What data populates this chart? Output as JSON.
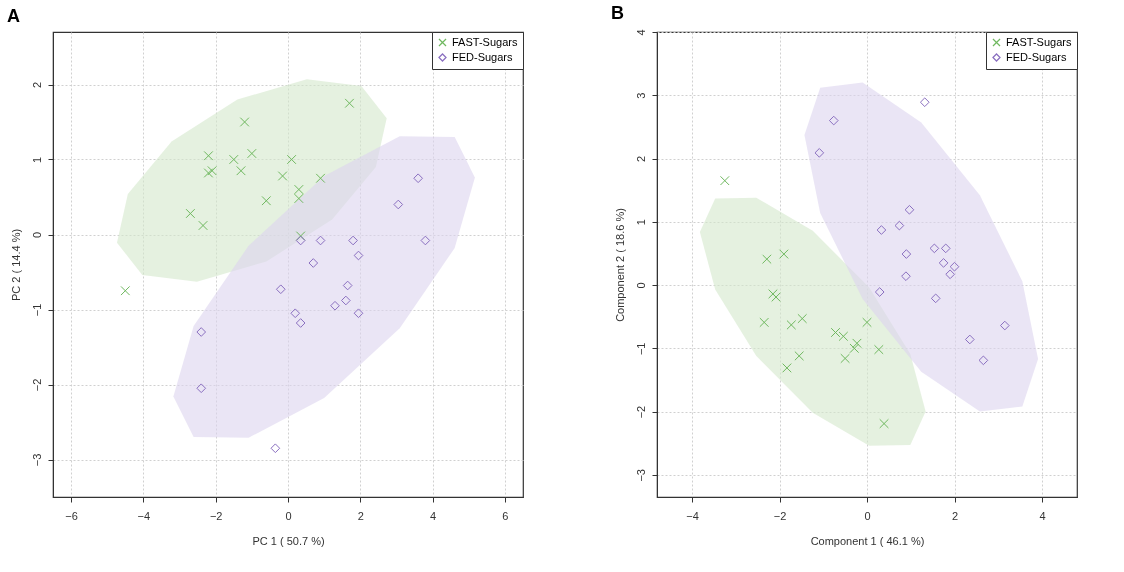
{
  "chart_data": [
    {
      "type": "scatter",
      "title": "A",
      "xlabel": "PC 1 ( 50.7 %)",
      "ylabel": "PC 2 ( 14.4 %)",
      "xlim": [
        -6.5,
        6.5
      ],
      "ylim": [
        -3.5,
        2.7
      ],
      "xticks": [
        -6,
        -4,
        -2,
        0,
        2,
        4,
        6
      ],
      "yticks": [
        -3,
        -2,
        -1,
        0,
        1,
        2
      ],
      "grid": true,
      "legend": "top right",
      "series": [
        {
          "type": "area",
          "color": "#d4e8cc",
          "x": [
            2.73,
            2.03,
            0.52,
            -1.4,
            -3.22,
            -4.43,
            -4.73,
            -4.03,
            -2.52,
            -0.6,
            1.22,
            2.43
          ],
          "values": [
            1.55,
            1.98,
            2.07,
            1.8,
            1.24,
            0.54,
            -0.11,
            -0.54,
            -0.63,
            -0.36,
            0.2,
            0.9
          ]
        },
        {
          "type": "area",
          "color": "#dcd3ee",
          "x": [
            5.17,
            4.61,
            3.09,
            1.0,
            -1.09,
            -2.61,
            -3.17,
            -2.61,
            -1.09,
            1.0,
            3.09,
            4.61
          ],
          "values": [
            0.76,
            1.3,
            1.31,
            0.78,
            -0.15,
            -1.22,
            -2.16,
            -2.7,
            -2.71,
            -2.18,
            -1.25,
            -0.18
          ]
        },
        {
          "name": "FAST-Sugars",
          "marker": "cross",
          "color": "#6fb85f",
          "x": [
            -4.5,
            -2.7,
            -2.35,
            -2.2,
            -2.1,
            -2.2,
            -1.2,
            -1.5,
            -1.0,
            -1.3,
            -0.6,
            -0.15,
            0.1,
            0.3,
            0.3,
            0.35,
            0.9,
            1.7
          ],
          "values": [
            -0.75,
            0.28,
            0.12,
            0.82,
            0.85,
            1.05,
            1.5,
            1.0,
            1.08,
            0.85,
            0.45,
            0.78,
            1.0,
            0.6,
            0.48,
            -0.02,
            0.75,
            1.75
          ]
        },
        {
          "name": "FED-Sugars",
          "marker": "diamond",
          "color": "#8a6fc0",
          "x": [
            3.6,
            3.05,
            3.8,
            0.35,
            0.9,
            1.8,
            1.95,
            0.7,
            1.65,
            1.6,
            1.3,
            -0.2,
            0.2,
            0.35,
            1.95,
            -2.4,
            -2.4,
            -0.35
          ],
          "values": [
            0.75,
            0.4,
            -0.08,
            -0.08,
            -0.08,
            -0.08,
            -0.28,
            -0.38,
            -0.68,
            -0.88,
            -0.95,
            -0.73,
            -1.05,
            -1.18,
            -1.05,
            -1.3,
            -2.05,
            -2.85
          ]
        }
      ]
    },
    {
      "type": "scatter",
      "title": "B",
      "xlabel": "Component 1 ( 46.1 %)",
      "ylabel": "Component 2 ( 18.6 %)",
      "xlim": [
        -4.8,
        4.8
      ],
      "ylim": [
        -3.35,
        4
      ],
      "xticks": [
        -4,
        -2,
        0,
        2,
        4
      ],
      "yticks": [
        -3,
        -2,
        -1,
        0,
        1,
        2,
        3,
        4
      ],
      "grid": true,
      "legend": "top right",
      "series": [
        {
          "type": "area",
          "color": "#d4e8cc",
          "x": [
            1.34,
            0.99,
            0.05,
            -1.24,
            -2.53,
            -3.47,
            -3.82,
            -3.47,
            -2.53,
            -1.24,
            0.05,
            0.99
          ],
          "values": [
            -2.0,
            -1.09,
            -0.04,
            0.86,
            1.38,
            1.37,
            0.84,
            -0.07,
            -1.12,
            -2.02,
            -2.54,
            -2.53
          ]
        },
        {
          "type": "area",
          "color": "#dcd3ee",
          "x": [
            3.91,
            3.55,
            2.58,
            1.24,
            -0.1,
            -1.07,
            -1.43,
            -1.07,
            -0.1,
            1.24,
            2.58,
            3.55
          ],
          "values": [
            -1.17,
            0.06,
            1.42,
            2.57,
            3.2,
            3.12,
            2.37,
            1.14,
            -0.22,
            -1.37,
            -2.0,
            -1.92
          ]
        },
        {
          "name": "FAST-Sugars",
          "marker": "cross",
          "color": "#6fb85f",
          "x": [
            -3.25,
            -2.29,
            -1.9,
            -2.15,
            -2.08,
            -2.35,
            -1.73,
            -1.48,
            -0.72,
            -0.54,
            -0.23,
            -0.29,
            -0.5,
            -1.55,
            -1.83,
            0.0,
            0.27,
            0.39
          ],
          "values": [
            1.65,
            0.41,
            0.49,
            -0.14,
            -0.19,
            -0.59,
            -0.63,
            -0.53,
            -0.75,
            -0.81,
            -0.92,
            -1.0,
            -1.16,
            -1.12,
            -1.31,
            -0.59,
            -1.02,
            -2.19
          ]
        },
        {
          "name": "FED-Sugars",
          "marker": "diamond",
          "color": "#8a6fc0",
          "x": [
            -0.76,
            -1.09,
            1.32,
            0.97,
            0.74,
            0.33,
            0.9,
            1.54,
            1.8,
            1.75,
            2.0,
            1.9,
            0.89,
            0.29,
            1.57,
            3.15,
            2.35,
            2.66
          ],
          "values": [
            2.6,
            2.09,
            2.89,
            1.19,
            0.94,
            0.87,
            0.49,
            0.58,
            0.58,
            0.35,
            0.29,
            0.17,
            0.14,
            -0.11,
            -0.21,
            -0.64,
            -0.86,
            -1.19
          ]
        }
      ]
    }
  ]
}
